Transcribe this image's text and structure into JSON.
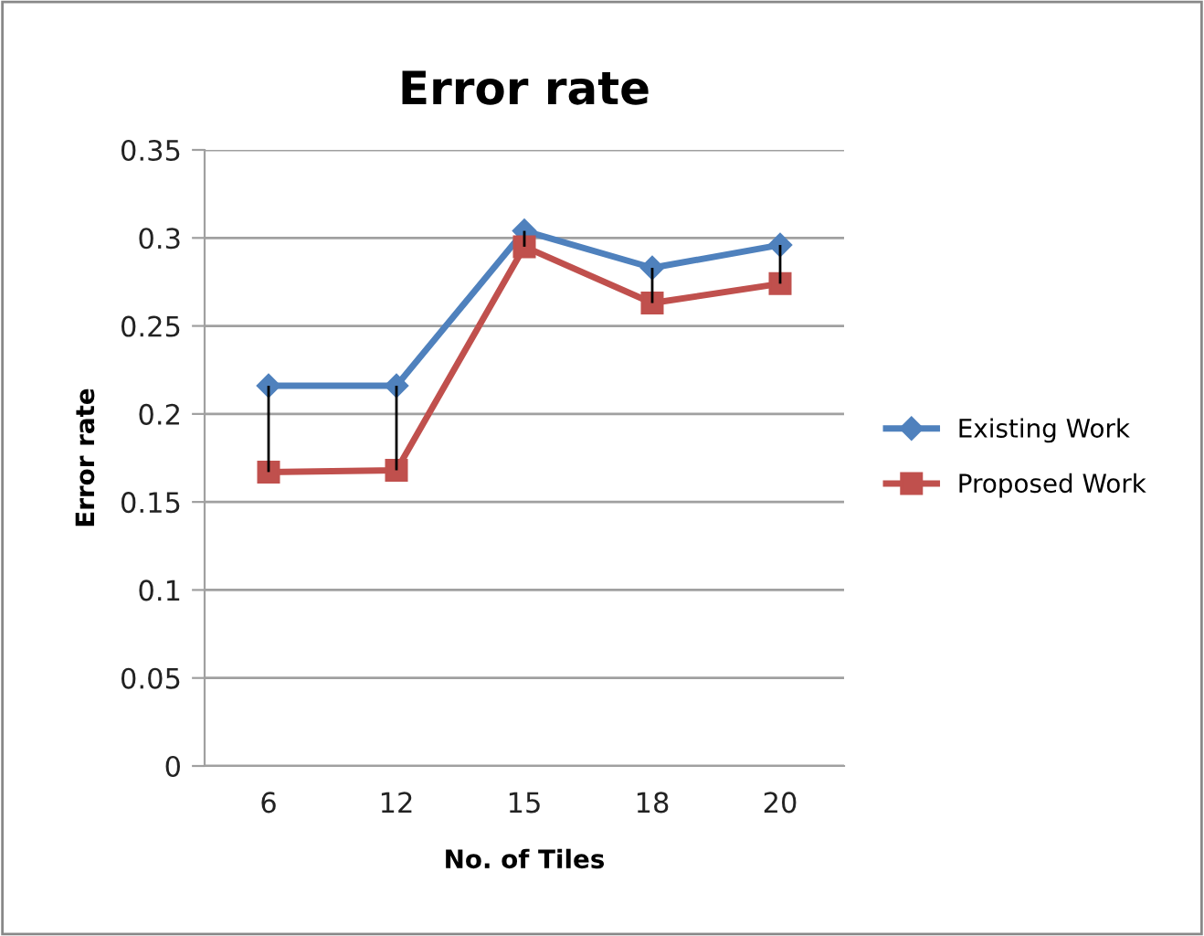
{
  "chart_data": {
    "type": "line",
    "title": "Error rate",
    "xlabel": "No. of Tiles",
    "ylabel": "Error rate",
    "categories": [
      "6",
      "12",
      "15",
      "18",
      "20"
    ],
    "series": [
      {
        "name": "Existing Work",
        "color": "#4f81bd",
        "marker": "diamond",
        "values": [
          0.216,
          0.216,
          0.304,
          0.283,
          0.296
        ]
      },
      {
        "name": "Proposed Work",
        "color": "#c0504d",
        "marker": "square",
        "values": [
          0.167,
          0.168,
          0.295,
          0.263,
          0.274
        ],
        "errors": [
          [
            0.167,
            0.216
          ],
          [
            0.168,
            0.216
          ],
          [
            0.295,
            0.304
          ],
          [
            0.263,
            0.283
          ],
          [
            0.274,
            0.296
          ]
        ]
      }
    ],
    "ylim": [
      0,
      0.35
    ],
    "yticks": [
      {
        "value": 0,
        "label": "0"
      },
      0.05,
      0.1,
      0.15,
      0.2,
      0.25,
      0.3,
      0.35
    ],
    "grid": "y",
    "legend": "right"
  }
}
